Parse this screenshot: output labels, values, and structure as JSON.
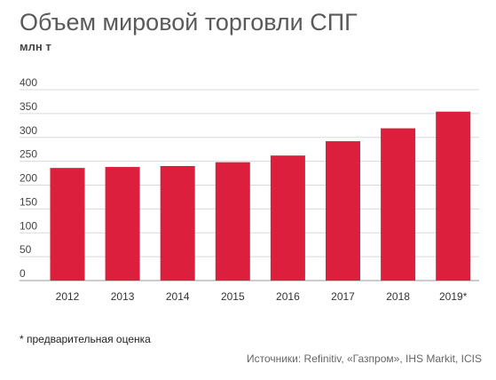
{
  "chart_data": {
    "type": "bar",
    "title": "Объем мировой торговли СПГ",
    "unit_label": "млн т",
    "categories": [
      "2012",
      "2013",
      "2014",
      "2015",
      "2016",
      "2017",
      "2018",
      "2019*"
    ],
    "values": [
      236,
      238,
      240,
      248,
      262,
      292,
      319,
      354
    ],
    "ylim": [
      0,
      400
    ],
    "yticks": [
      0,
      50,
      100,
      150,
      200,
      250,
      300,
      350,
      400
    ],
    "grid": true,
    "bar_color": "#dc1f3c"
  },
  "footnote": "* предварительная оценка",
  "source": "Источники: Refinitiv, «Газпром», IHS Markit, ICIS"
}
